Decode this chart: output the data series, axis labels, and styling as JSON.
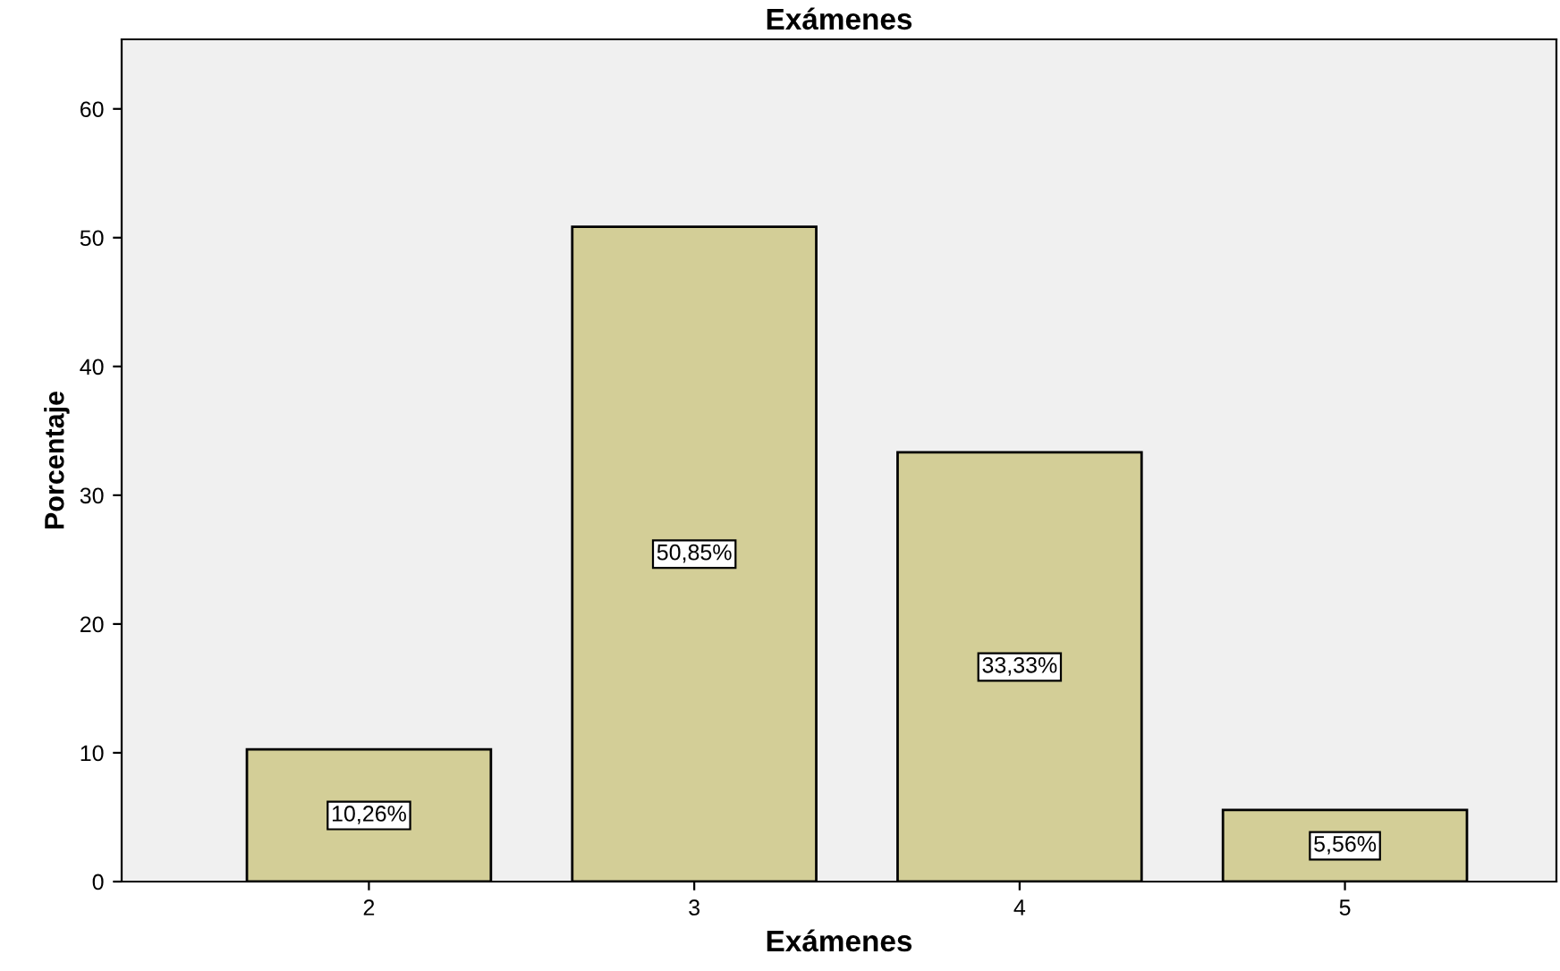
{
  "chart_data": {
    "type": "bar",
    "title": "Exámenes",
    "xlabel": "Exámenes",
    "ylabel": "Porcentaje",
    "categories": [
      "2",
      "3",
      "4",
      "5"
    ],
    "values": [
      10.26,
      50.85,
      33.33,
      5.56
    ],
    "value_labels": [
      "10,26%",
      "50,85%",
      "33,33%",
      "5,56%"
    ],
    "color": "#d3ce97",
    "ylim": [
      0,
      65.4
    ],
    "yticks": [
      0,
      10,
      20,
      30,
      40,
      50,
      60
    ],
    "grid": false
  }
}
